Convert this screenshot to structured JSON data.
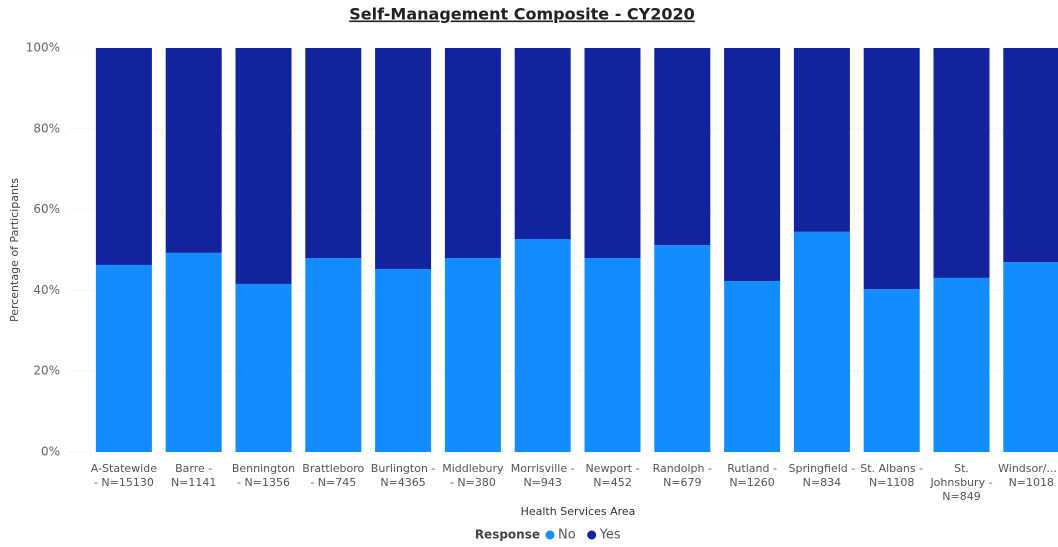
{
  "chart_data": {
    "type": "stacked_bar_100",
    "title": "Self-Management Composite - CY2020",
    "y_axis_label": "Percentage of Participants",
    "x_axis_label": "Health Services Area",
    "legend_title": "Response",
    "categories": [
      "A-Statewide - N=15130",
      "Barre - N=1141",
      "Bennington - N=1356",
      "Brattleboro - N=745",
      "Burlington - N=4365",
      "Middlebury - N=380",
      "Morrisville - N=943",
      "Newport - N=452",
      "Randolph - N=679",
      "Rutland - N=1260",
      "Springfield - N=834",
      "St. Albans - N=1108",
      "St. Johnsbury - N=849",
      "Windsor/... - N=1018"
    ],
    "series": [
      {
        "name": "No",
        "color": "#118DFF",
        "values": [
          46.3,
          49.3,
          41.6,
          48.0,
          45.3,
          48.0,
          52.7,
          48.0,
          51.2,
          42.3,
          54.5,
          40.3,
          43.1,
          47.0
        ]
      },
      {
        "name": "Yes",
        "color": "#12239E",
        "values": [
          53.7,
          50.7,
          58.4,
          52.0,
          54.7,
          52.0,
          47.3,
          52.0,
          48.8,
          57.7,
          45.5,
          59.7,
          56.9,
          53.0
        ]
      }
    ],
    "ylim": [
      0,
      100
    ],
    "yticks": [
      {
        "value": 0,
        "label": "0%"
      },
      {
        "value": 20,
        "label": "20%"
      },
      {
        "value": 40,
        "label": "40%"
      },
      {
        "value": 60,
        "label": "60%"
      },
      {
        "value": 80,
        "label": "80%"
      },
      {
        "value": 100,
        "label": "100%"
      }
    ],
    "grid": true
  }
}
